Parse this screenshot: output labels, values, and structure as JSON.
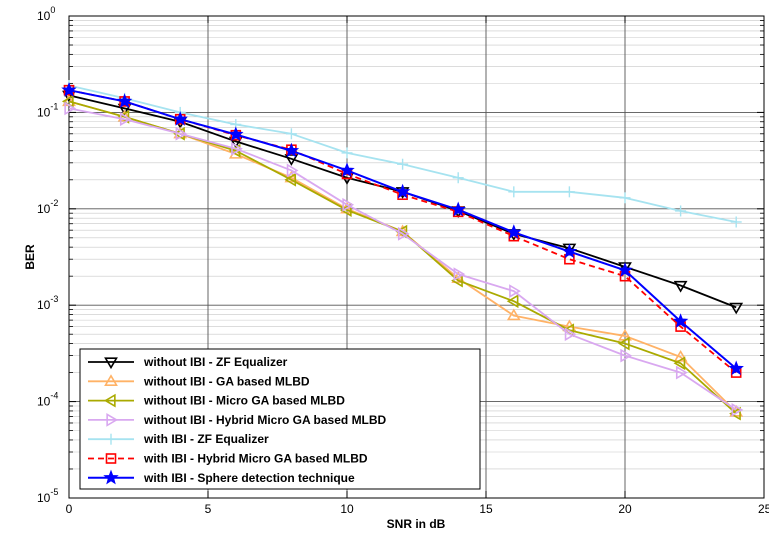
{
  "chart_data": {
    "type": "line",
    "title": "",
    "xlabel": "SNR in dB",
    "ylabel": "BER",
    "xlim": [
      0,
      25
    ],
    "ylim": [
      1e-05,
      1
    ],
    "yscale": "log",
    "grid": true,
    "minor_grid": true,
    "legend_position": "bottom-left",
    "x_ticks": [
      "0",
      "5",
      "10",
      "15",
      "20",
      "25"
    ],
    "y_ticks": [
      {
        "base": "10",
        "exp": "-5"
      },
      {
        "base": "10",
        "exp": "-4"
      },
      {
        "base": "10",
        "exp": "-3"
      },
      {
        "base": "10",
        "exp": "-2"
      },
      {
        "base": "10",
        "exp": "-1"
      },
      {
        "base": "10",
        "exp": "0"
      }
    ],
    "series": [
      {
        "name": "without IBI - ZF Equalizer",
        "color": "#000000",
        "dash": "solid",
        "marker": "triangle-down",
        "x": [
          0,
          2,
          4,
          6,
          8,
          10,
          12,
          14,
          16,
          18,
          20,
          22,
          24
        ],
        "y": [
          0.15,
          0.11,
          0.08,
          0.05,
          0.033,
          0.021,
          0.015,
          0.0095,
          0.0055,
          0.0039,
          0.0025,
          0.0016,
          0.00095
        ]
      },
      {
        "name": "without IBI - GA based MLBD",
        "color": "#FFB266",
        "dash": "solid",
        "marker": "triangle-up",
        "x": [
          0,
          2,
          4,
          6,
          8,
          10,
          12,
          14,
          16,
          18,
          20,
          22,
          24
        ],
        "y": [
          0.13,
          0.09,
          0.06,
          0.037,
          0.021,
          0.01,
          0.0058,
          0.0019,
          0.00078,
          0.0006,
          0.00048,
          0.00029,
          7.8e-05
        ]
      },
      {
        "name": "without IBI - Micro GA based MLBD",
        "color": "#AAAA00",
        "dash": "solid",
        "marker": "triangle-left",
        "x": [
          0,
          2,
          4,
          6,
          8,
          10,
          12,
          14,
          16,
          18,
          20,
          22,
          24
        ],
        "y": [
          0.13,
          0.09,
          0.06,
          0.04,
          0.02,
          0.0097,
          0.0058,
          0.0018,
          0.0011,
          0.00055,
          0.0004,
          0.00025,
          7.5e-05
        ]
      },
      {
        "name": "without IBI - Hybrid Micro GA based MLBD",
        "color": "#D9A8F0",
        "dash": "solid",
        "marker": "triangle-right",
        "x": [
          0,
          2,
          4,
          6,
          8,
          10,
          12,
          14,
          16,
          18,
          20,
          22,
          24
        ],
        "y": [
          0.11,
          0.085,
          0.06,
          0.042,
          0.025,
          0.011,
          0.0055,
          0.0021,
          0.0014,
          0.0005,
          0.0003,
          0.0002,
          8.2e-05
        ]
      },
      {
        "name": "with IBI - ZF Equalizer",
        "color": "#A6E3F0",
        "dash": "solid",
        "marker": "plus",
        "x": [
          0,
          2,
          4,
          6,
          8,
          10,
          12,
          14,
          16,
          18,
          20,
          22,
          24
        ],
        "y": [
          0.19,
          0.14,
          0.1,
          0.075,
          0.06,
          0.038,
          0.029,
          0.021,
          0.015,
          0.015,
          0.013,
          0.0095,
          0.0073
        ]
      },
      {
        "name": "with IBI - Hybrid Micro GA based MLBD",
        "color": "#FF0000",
        "dash": "dashed",
        "marker": "square",
        "x": [
          0,
          2,
          4,
          6,
          8,
          10,
          12,
          14,
          16,
          18,
          20,
          22,
          24
        ],
        "y": [
          0.17,
          0.13,
          0.085,
          0.058,
          0.041,
          0.023,
          0.014,
          0.0093,
          0.0052,
          0.003,
          0.002,
          0.0006,
          0.0002
        ]
      },
      {
        "name": "with IBI - Sphere detection technique",
        "color": "#0000FF",
        "dash": "solid",
        "marker": "star",
        "x": [
          0,
          2,
          4,
          6,
          8,
          10,
          12,
          14,
          16,
          18,
          20,
          22,
          24
        ],
        "y": [
          0.17,
          0.13,
          0.085,
          0.059,
          0.04,
          0.025,
          0.015,
          0.0098,
          0.0057,
          0.0036,
          0.0023,
          0.00068,
          0.00022
        ]
      }
    ]
  }
}
